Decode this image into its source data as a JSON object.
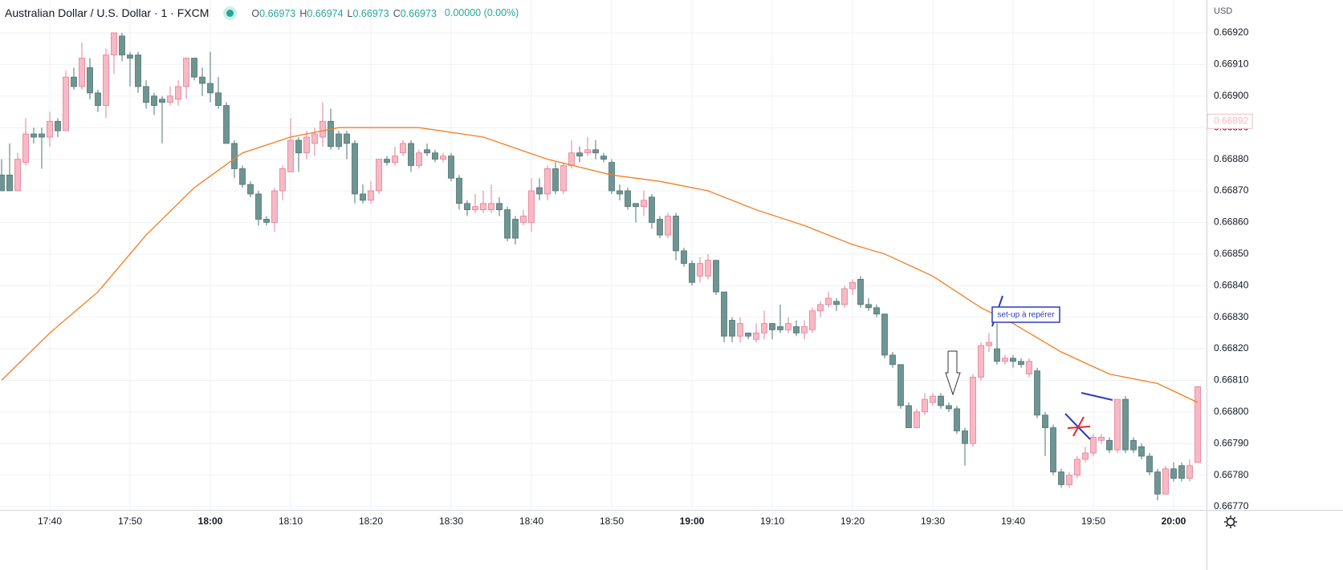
{
  "chart_data": {
    "type": "candlestick",
    "title": "Australian Dollar / U.S. Dollar · 1 · FXCM",
    "ohlc_header": [
      {
        "label": "O",
        "value": 0.66973
      },
      {
        "label": "H",
        "value": 0.66974
      },
      {
        "label": "L",
        "value": 0.66973
      },
      {
        "label": "C",
        "value": 0.66973
      }
    ],
    "change": "0.00000 (0.00%)",
    "currency": "USD",
    "last_price_label": 0.66892,
    "annotations": [
      "set-up à repérer"
    ],
    "up_color": "#f7b9c6",
    "up_border": "#e47e95",
    "down_color": "#6f9592",
    "down_border": "#4d7572",
    "ma_color": "#f57c1f",
    "grid": true,
    "xlim": [
      -0.2,
      150.1
    ],
    "ylim": [
      0.66769,
      0.669304
    ],
    "xticks": [
      {
        "value": 6,
        "label": "17:40"
      },
      {
        "value": 16,
        "label": "17:50"
      },
      {
        "value": 26,
        "label": "18:00",
        "bold": true
      },
      {
        "value": 36,
        "label": "18:10"
      },
      {
        "value": 46,
        "label": "18:20"
      },
      {
        "value": 56,
        "label": "18:30"
      },
      {
        "value": 66,
        "label": "18:40"
      },
      {
        "value": 76,
        "label": "18:50"
      },
      {
        "value": 86,
        "label": "19:00",
        "bold": true
      },
      {
        "value": 96,
        "label": "19:10"
      },
      {
        "value": 106,
        "label": "19:20"
      },
      {
        "value": 116,
        "label": "19:30"
      },
      {
        "value": 126,
        "label": "19:40"
      },
      {
        "value": 136,
        "label": "19:50"
      },
      {
        "value": 146,
        "label": "20:00",
        "bold": true
      }
    ],
    "yticks": [
      {
        "value": 0.6677,
        "label": "0.66770"
      },
      {
        "value": 0.6678,
        "label": "0.66780"
      },
      {
        "value": 0.6679,
        "label": "0.66790"
      },
      {
        "value": 0.668,
        "label": "0.66800"
      },
      {
        "value": 0.6681,
        "label": "0.66810"
      },
      {
        "value": 0.6682,
        "label": "0.66820"
      },
      {
        "value": 0.6683,
        "label": "0.66830"
      },
      {
        "value": 0.6684,
        "label": "0.66840"
      },
      {
        "value": 0.6685,
        "label": "0.66850"
      },
      {
        "value": 0.6686,
        "label": "0.66860"
      },
      {
        "value": 0.6687,
        "label": "0.66870"
      },
      {
        "value": 0.6688,
        "label": "0.66880"
      },
      {
        "value": 0.6689,
        "label": "0.66890"
      },
      {
        "value": 0.669,
        "label": "0.66900"
      },
      {
        "value": 0.6691,
        "label": "0.66910"
      },
      {
        "value": 0.6692,
        "label": "0.66920"
      }
    ],
    "open": [
      0.66875,
      0.66875,
      0.6687,
      0.66879,
      0.66888,
      0.66888,
      0.66887,
      0.66892,
      0.66889,
      0.66906,
      0.66903,
      0.66909,
      0.66901,
      0.66897,
      0.66913,
      0.66919,
      0.66913,
      0.66913,
      0.66903,
      0.669,
      0.66899,
      0.66898,
      0.66899,
      0.66903,
      0.66912,
      0.66906,
      0.66904,
      0.66901,
      0.66897,
      0.66885,
      0.66877,
      0.66872,
      0.66869,
      0.66861,
      0.6686,
      0.6687,
      0.66876,
      0.66886,
      0.66882,
      0.66885,
      0.66887,
      0.66892,
      0.66888,
      0.66888,
      0.66885,
      0.66869,
      0.66867,
      0.6687,
      0.6688,
      0.66879,
      0.66882,
      0.66885,
      0.66878,
      0.66883,
      0.66882,
      0.6688,
      0.66881,
      0.66874,
      0.66866,
      0.66864,
      0.66864,
      0.66864,
      0.66866,
      0.66864,
      0.66861,
      0.6686,
      0.6686,
      0.66871,
      0.66869,
      0.66877,
      0.6687,
      0.66878,
      0.66882,
      0.66882,
      0.66883,
      0.66881,
      0.66879,
      0.6687,
      0.6687,
      0.66866,
      0.66865,
      0.66868,
      0.66861,
      0.66856,
      0.66862,
      0.66851,
      0.66847,
      0.66843,
      0.66843,
      0.66848,
      0.66838,
      0.66829,
      0.66824,
      0.66825,
      0.66823,
      0.66825,
      0.66828,
      0.66827,
      0.66826,
      0.66827,
      0.66825,
      0.66826,
      0.66832,
      0.66834,
      0.66835,
      0.66834,
      0.66839,
      0.66842,
      0.66834,
      0.66833,
      0.66831,
      0.66818,
      0.66815,
      0.66802,
      0.66795,
      0.668,
      0.66803,
      0.66805,
      0.66802,
      0.66801,
      0.66794,
      0.6679,
      0.66811,
      0.66821,
      0.6682,
      0.66816,
      0.66817,
      0.66816,
      0.66812,
      0.66813,
      0.66799,
      0.66795,
      0.66781,
      0.66777,
      0.6678,
      0.66785,
      0.66787,
      0.66791,
      0.66791,
      0.66788,
      0.66804,
      0.66791,
      0.66789,
      0.66786,
      0.66781,
      0.66774,
      0.66782,
      0.66783,
      0.66779,
      0.66784
    ],
    "high": [
      0.6688,
      0.66885,
      0.66882,
      0.66893,
      0.6689,
      0.6689,
      0.66895,
      0.66893,
      0.66908,
      0.66909,
      0.66917,
      0.66912,
      0.66902,
      0.66915,
      0.6692,
      0.6692,
      0.66914,
      0.66914,
      0.66905,
      0.66901,
      0.669,
      0.66903,
      0.66905,
      0.66912,
      0.66912,
      0.66909,
      0.66914,
      0.66906,
      0.66898,
      0.66886,
      0.66878,
      0.66873,
      0.6687,
      0.66862,
      0.66871,
      0.66878,
      0.66893,
      0.66887,
      0.66889,
      0.6689,
      0.66898,
      0.66896,
      0.66889,
      0.66889,
      0.66886,
      0.66872,
      0.66873,
      0.6688,
      0.66881,
      0.66884,
      0.66886,
      0.66886,
      0.66883,
      0.66885,
      0.66883,
      0.66882,
      0.66882,
      0.66875,
      0.66867,
      0.66869,
      0.6687,
      0.66872,
      0.66868,
      0.66865,
      0.66862,
      0.66864,
      0.66874,
      0.66874,
      0.66878,
      0.66879,
      0.66879,
      0.66886,
      0.66884,
      0.66887,
      0.66886,
      0.66882,
      0.6688,
      0.66872,
      0.66871,
      0.66866,
      0.6687,
      0.66869,
      0.66862,
      0.66863,
      0.66863,
      0.66852,
      0.66848,
      0.66849,
      0.6685,
      0.66848,
      0.66838,
      0.6683,
      0.6683,
      0.66825,
      0.66828,
      0.66832,
      0.66828,
      0.66834,
      0.6683,
      0.66829,
      0.66829,
      0.66833,
      0.66835,
      0.66838,
      0.66836,
      0.6684,
      0.66842,
      0.66843,
      0.66836,
      0.66834,
      0.66831,
      0.66819,
      0.66815,
      0.66803,
      0.66801,
      0.66806,
      0.66806,
      0.66806,
      0.66803,
      0.66802,
      0.66795,
      0.66812,
      0.66822,
      0.66825,
      0.66828,
      0.66818,
      0.66818,
      0.66817,
      0.66817,
      0.66814,
      0.668,
      0.66796,
      0.66782,
      0.66781,
      0.66786,
      0.66789,
      0.66793,
      0.66793,
      0.66792,
      0.66804,
      0.66805,
      0.66792,
      0.6679,
      0.66787,
      0.66782,
      0.66783,
      0.66784,
      0.66784,
      0.66785,
      0.66808
    ],
    "low": [
      0.6687,
      0.6687,
      0.6687,
      0.66878,
      0.66885,
      0.66877,
      0.66884,
      0.66887,
      0.66889,
      0.66902,
      0.66902,
      0.66899,
      0.66895,
      0.66893,
      0.66907,
      0.66911,
      0.66903,
      0.66901,
      0.66896,
      0.66894,
      0.66885,
      0.66897,
      0.66897,
      0.66899,
      0.66905,
      0.669,
      0.66898,
      0.66896,
      0.66885,
      0.66874,
      0.66871,
      0.66868,
      0.66859,
      0.66859,
      0.66857,
      0.66867,
      0.66876,
      0.66876,
      0.6688,
      0.66881,
      0.66884,
      0.66883,
      0.66883,
      0.6688,
      0.66866,
      0.66866,
      0.66866,
      0.66869,
      0.66878,
      0.66878,
      0.66881,
      0.66876,
      0.66877,
      0.66881,
      0.66879,
      0.66879,
      0.66873,
      0.66864,
      0.66862,
      0.66863,
      0.66863,
      0.66863,
      0.66862,
      0.66854,
      0.66853,
      0.66859,
      0.66857,
      0.66867,
      0.66867,
      0.66869,
      0.66869,
      0.66877,
      0.66879,
      0.66881,
      0.6688,
      0.66879,
      0.66869,
      0.66867,
      0.66864,
      0.6686,
      0.66862,
      0.66858,
      0.66855,
      0.66855,
      0.66848,
      0.66846,
      0.6684,
      0.66841,
      0.66842,
      0.66837,
      0.66822,
      0.66822,
      0.66822,
      0.66823,
      0.66822,
      0.66823,
      0.66823,
      0.66825,
      0.66825,
      0.66824,
      0.66823,
      0.66825,
      0.6683,
      0.66833,
      0.66832,
      0.66833,
      0.66837,
      0.66833,
      0.66832,
      0.6683,
      0.66817,
      0.66814,
      0.66801,
      0.66795,
      0.66795,
      0.66799,
      0.66802,
      0.66801,
      0.668,
      0.66793,
      0.66783,
      0.66789,
      0.6681,
      0.66819,
      0.66815,
      0.66815,
      0.66814,
      0.66814,
      0.66811,
      0.66798,
      0.66786,
      0.6678,
      0.66776,
      0.66776,
      0.66779,
      0.66784,
      0.66786,
      0.6679,
      0.66787,
      0.66787,
      0.66787,
      0.66787,
      0.66785,
      0.6678,
      0.66772,
      0.66774,
      0.66778,
      0.66778,
      0.66778,
      0.66784
    ],
    "close": [
      0.6687,
      0.6687,
      0.6688,
      0.66888,
      0.66887,
      0.66887,
      0.66892,
      0.66889,
      0.66906,
      0.66903,
      0.66912,
      0.66901,
      0.66897,
      0.66913,
      0.6692,
      0.66913,
      0.66912,
      0.66903,
      0.66898,
      0.66897,
      0.66898,
      0.669,
      0.66903,
      0.66912,
      0.66906,
      0.66904,
      0.66901,
      0.66897,
      0.66885,
      0.66877,
      0.66872,
      0.66869,
      0.66861,
      0.6686,
      0.6687,
      0.66877,
      0.66886,
      0.66882,
      0.66887,
      0.66888,
      0.66892,
      0.66884,
      0.66884,
      0.66885,
      0.66869,
      0.66867,
      0.6687,
      0.6688,
      0.66879,
      0.66881,
      0.66885,
      0.66878,
      0.66882,
      0.66882,
      0.6688,
      0.66881,
      0.66874,
      0.66866,
      0.66864,
      0.66865,
      0.66866,
      0.66866,
      0.66864,
      0.66855,
      0.66855,
      0.66862,
      0.6687,
      0.66869,
      0.66877,
      0.6687,
      0.66878,
      0.66882,
      0.66881,
      0.66883,
      0.66882,
      0.6688,
      0.6687,
      0.66869,
      0.66865,
      0.66865,
      0.66867,
      0.6686,
      0.66856,
      0.66862,
      0.66851,
      0.66847,
      0.66841,
      0.66847,
      0.66848,
      0.66838,
      0.66824,
      0.66824,
      0.66828,
      0.66824,
      0.66825,
      0.66828,
      0.66826,
      0.66826,
      0.66828,
      0.66825,
      0.66827,
      0.66832,
      0.66834,
      0.66836,
      0.66834,
      0.66839,
      0.66841,
      0.66834,
      0.66833,
      0.66831,
      0.66818,
      0.66815,
      0.66802,
      0.66795,
      0.668,
      0.66804,
      0.66805,
      0.66802,
      0.66801,
      0.66794,
      0.6679,
      0.66811,
      0.66821,
      0.66822,
      0.66816,
      0.66817,
      0.66816,
      0.66815,
      0.66816,
      0.66799,
      0.66795,
      0.66781,
      0.66777,
      0.6678,
      0.66785,
      0.66787,
      0.66792,
      0.66792,
      0.66788,
      0.66804,
      0.66788,
      0.66788,
      0.66786,
      0.66781,
      0.66774,
      0.66782,
      0.66779,
      0.66779,
      0.66783,
      0.66808
    ],
    "ma": {
      "x": [
        0,
        6,
        12,
        18,
        24,
        30,
        36,
        42,
        48,
        52,
        60,
        68,
        76,
        82,
        88,
        94,
        100,
        106,
        110,
        116,
        122,
        126,
        132,
        138,
        144,
        149
      ],
      "values": [
        0.6681,
        0.66825,
        0.66838,
        0.66856,
        0.66871,
        0.66882,
        0.66887,
        0.6689,
        0.6689,
        0.6689,
        0.66887,
        0.6688,
        0.66875,
        0.66873,
        0.6687,
        0.66864,
        0.66859,
        0.66853,
        0.6685,
        0.66843,
        0.66833,
        0.66828,
        0.66819,
        0.66812,
        0.66809,
        0.66803
      ]
    }
  }
}
